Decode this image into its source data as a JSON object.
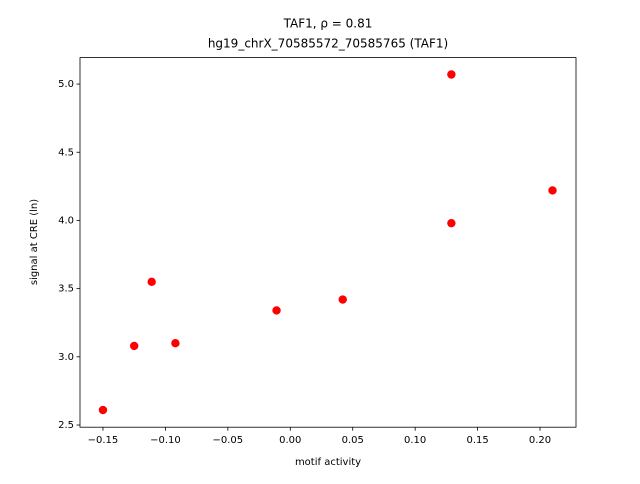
{
  "chart_data": {
    "type": "scatter",
    "title": "TAF1, ρ = 0.81",
    "subtitle": "hg19_chrX_70585572_70585765 (TAF1)",
    "x_label": "motif activity",
    "y_label": "signal at CRE (ln)",
    "color": "#ff0000",
    "series": [
      {
        "x": [
          -0.15,
          -0.125,
          -0.111,
          -0.092,
          -0.011,
          0.042,
          0.129,
          0.129,
          0.21
        ],
        "values": [
          2.61,
          3.08,
          3.55,
          3.1,
          3.34,
          3.42,
          5.07,
          3.98,
          4.22
        ]
      }
    ],
    "xlim": [
      -0.1684,
      0.2288
    ],
    "ylim": [
      2.484,
      5.194
    ],
    "xticks": [
      {
        "value": -0.15,
        "label": "−0.15"
      },
      {
        "value": -0.1,
        "label": "−0.10"
      },
      {
        "value": -0.05,
        "label": "−0.05"
      },
      {
        "value": 0,
        "label": "0.00"
      },
      {
        "value": 0.05,
        "label": "0.05"
      },
      {
        "value": 0.1,
        "label": "0.10"
      },
      {
        "value": 0.15,
        "label": "0.15"
      },
      {
        "value": 0.2,
        "label": "0.20"
      }
    ],
    "yticks": [
      {
        "value": 2.5,
        "label": "2.5"
      },
      {
        "value": 3,
        "label": "3.0"
      },
      {
        "value": 3.5,
        "label": "3.5"
      },
      {
        "value": 4,
        "label": "4.0"
      },
      {
        "value": 4.5,
        "label": "4.5"
      },
      {
        "value": 5,
        "label": "5.0"
      }
    ]
  }
}
